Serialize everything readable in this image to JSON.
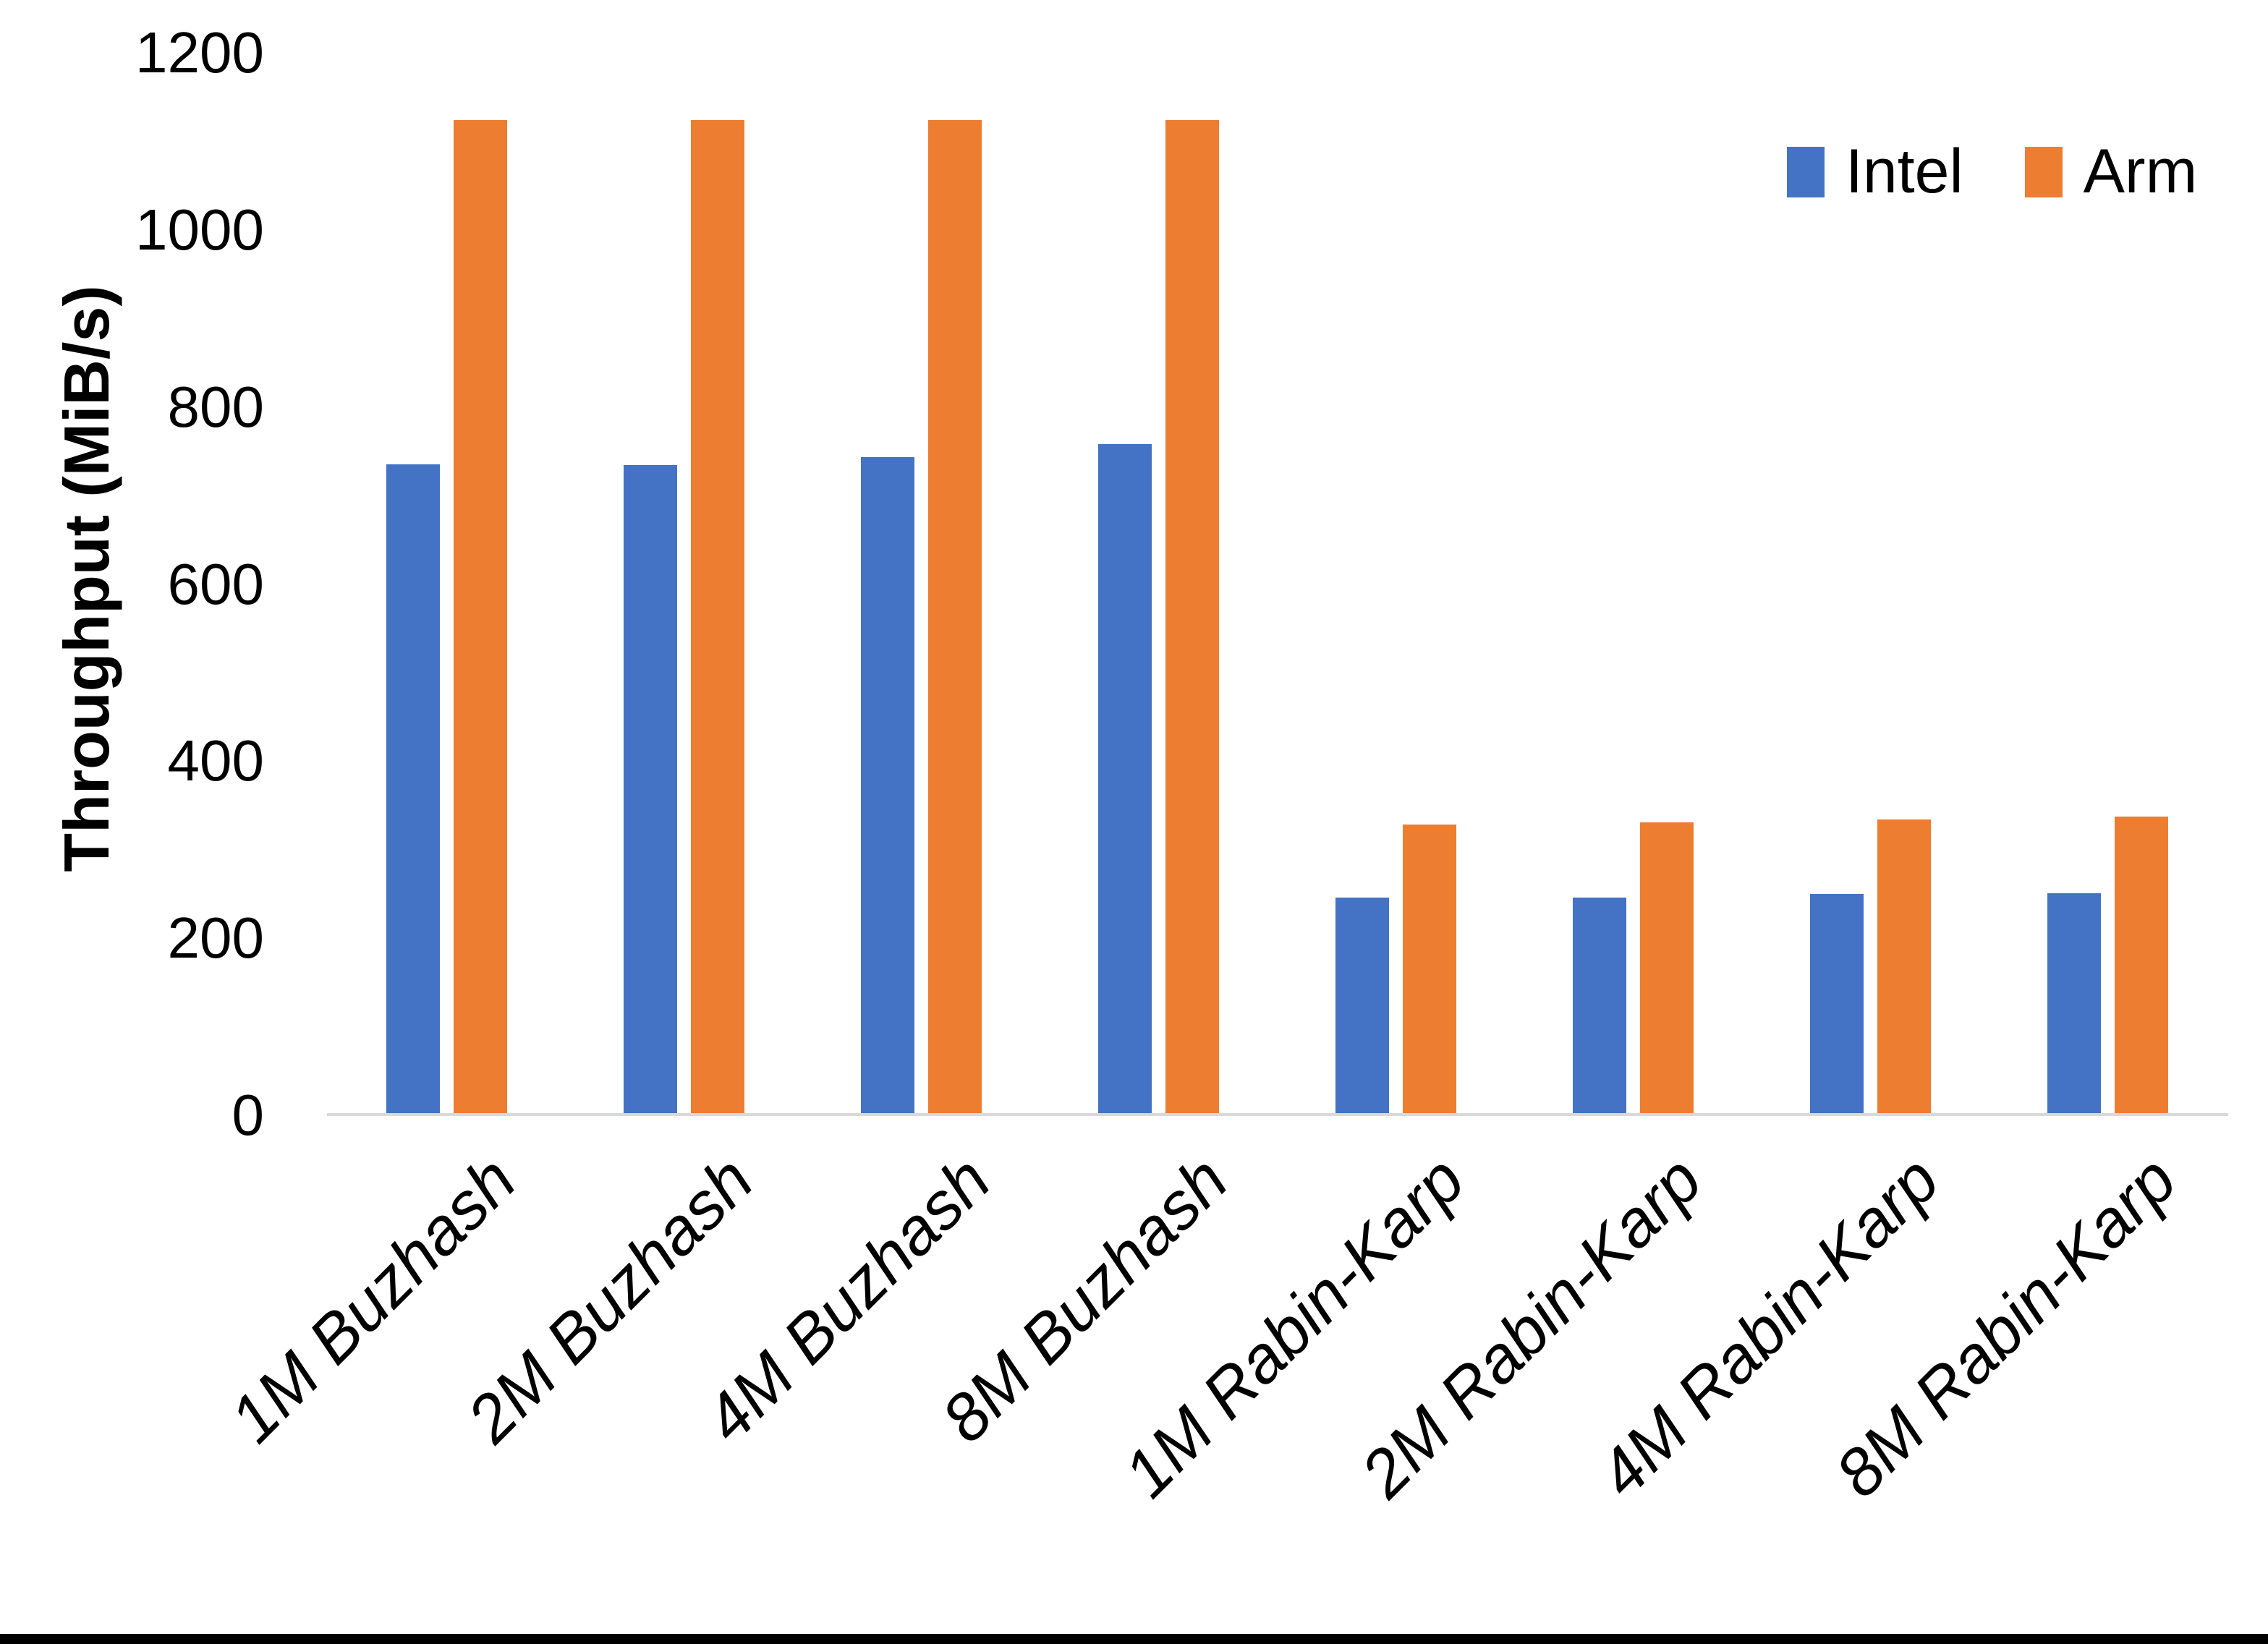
{
  "page": {
    "background": "#FFFFFF",
    "bottom_edge_color": "#000000"
  },
  "chart_data": {
    "type": "bar",
    "title": "",
    "ylabel": "Throughput (MiB/s)",
    "xlabel": "",
    "ylim": [
      0,
      1200
    ],
    "yticks": [
      0,
      200,
      400,
      600,
      800,
      1000,
      1200
    ],
    "grid": false,
    "legend_position": "top-right",
    "axis_line_color": "#D9D9D9",
    "categories": [
      "1M Buzhash",
      "2M Buzhash",
      "4M Buzhash",
      "8M Buzhash",
      "1M Rabin-Karp",
      "2M Rabin-Karp",
      "4M Rabin-Karp",
      "8M Rabin-Karp"
    ],
    "series": [
      {
        "name": "Intel",
        "color": "#4472C4",
        "values": [
          735,
          734,
          743,
          758,
          246,
          246,
          250,
          251
        ]
      },
      {
        "name": "Arm",
        "color": "#ED7D31",
        "values": [
          1124,
          1124,
          1124,
          1124,
          328,
          331,
          334,
          337
        ]
      }
    ]
  }
}
